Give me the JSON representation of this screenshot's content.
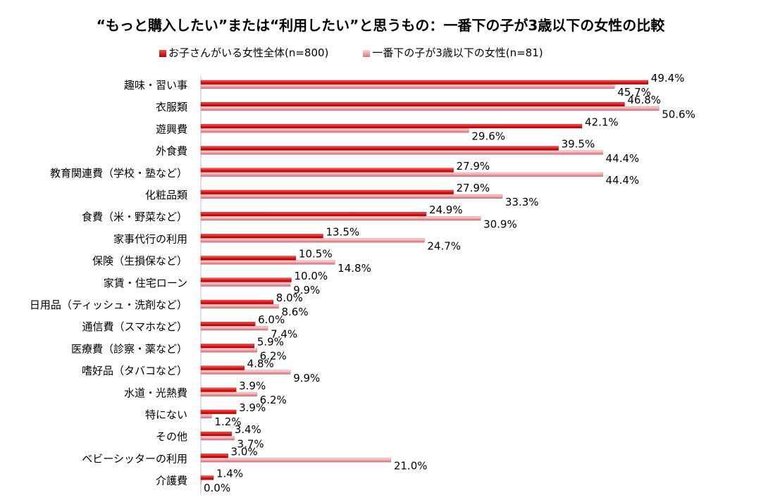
{
  "chart_data": {
    "type": "bar",
    "orientation": "horizontal",
    "title": "“もっと購入したい”または“利用したい”と思うもの：一番下の子が3歳以下の女性の比較",
    "legend_position": "top",
    "categories": [
      "趣味・習い事",
      "衣服類",
      "遊興費",
      "外食費",
      "教育関連費（学校・塾など）",
      "化粧品類",
      "食費（米・野菜など）",
      "家事代行の利用",
      "保険（生損保など）",
      "家賃・住宅ローン",
      "日用品（ティッシュ・洗剤など）",
      "通信費（スマホなど）",
      "医療費（診察・薬など）",
      "嗜好品（タバコなど）",
      "水道・光熱費",
      "特にない",
      "その他",
      "ベビーシッターの利用",
      "介護費"
    ],
    "series": [
      {
        "name": "お子さんがいる女性全体(n=800)",
        "color": "#e01a1a",
        "values": [
          49.4,
          46.8,
          42.1,
          39.5,
          27.9,
          27.9,
          24.9,
          13.5,
          10.5,
          10.0,
          8.0,
          6.0,
          5.9,
          4.8,
          3.9,
          3.9,
          3.4,
          3.0,
          1.4
        ],
        "labels": [
          "49.4%",
          "46.8%",
          "42.1%",
          "39.5%",
          "27.9%",
          "27.9%",
          "24.9%",
          "13.5%",
          "10.5%",
          "10.0%",
          "8.0%",
          "6.0%",
          "5.9%",
          "4.8%",
          "3.9%",
          "3.9%",
          "3.4%",
          "3.0%",
          "1.4%"
        ]
      },
      {
        "name": "一番下の子が3歳以下の女性(n=81)",
        "color": "#ec9aa0",
        "values": [
          45.7,
          50.6,
          29.6,
          44.4,
          44.4,
          33.3,
          30.9,
          24.7,
          14.8,
          9.9,
          8.6,
          7.4,
          6.2,
          9.9,
          6.2,
          1.2,
          3.7,
          21.0,
          0.0
        ],
        "labels": [
          "45.7%",
          "50.6%",
          "29.6%",
          "44.4%",
          "44.4%",
          "33.3%",
          "30.9%",
          "24.7%",
          "14.8%",
          "9.9%",
          "8.6%",
          "7.4%",
          "6.2%",
          "9.9%",
          "6.2%",
          "1.2%",
          "3.7%",
          "21.0%",
          "0.0%"
        ]
      }
    ]
  }
}
